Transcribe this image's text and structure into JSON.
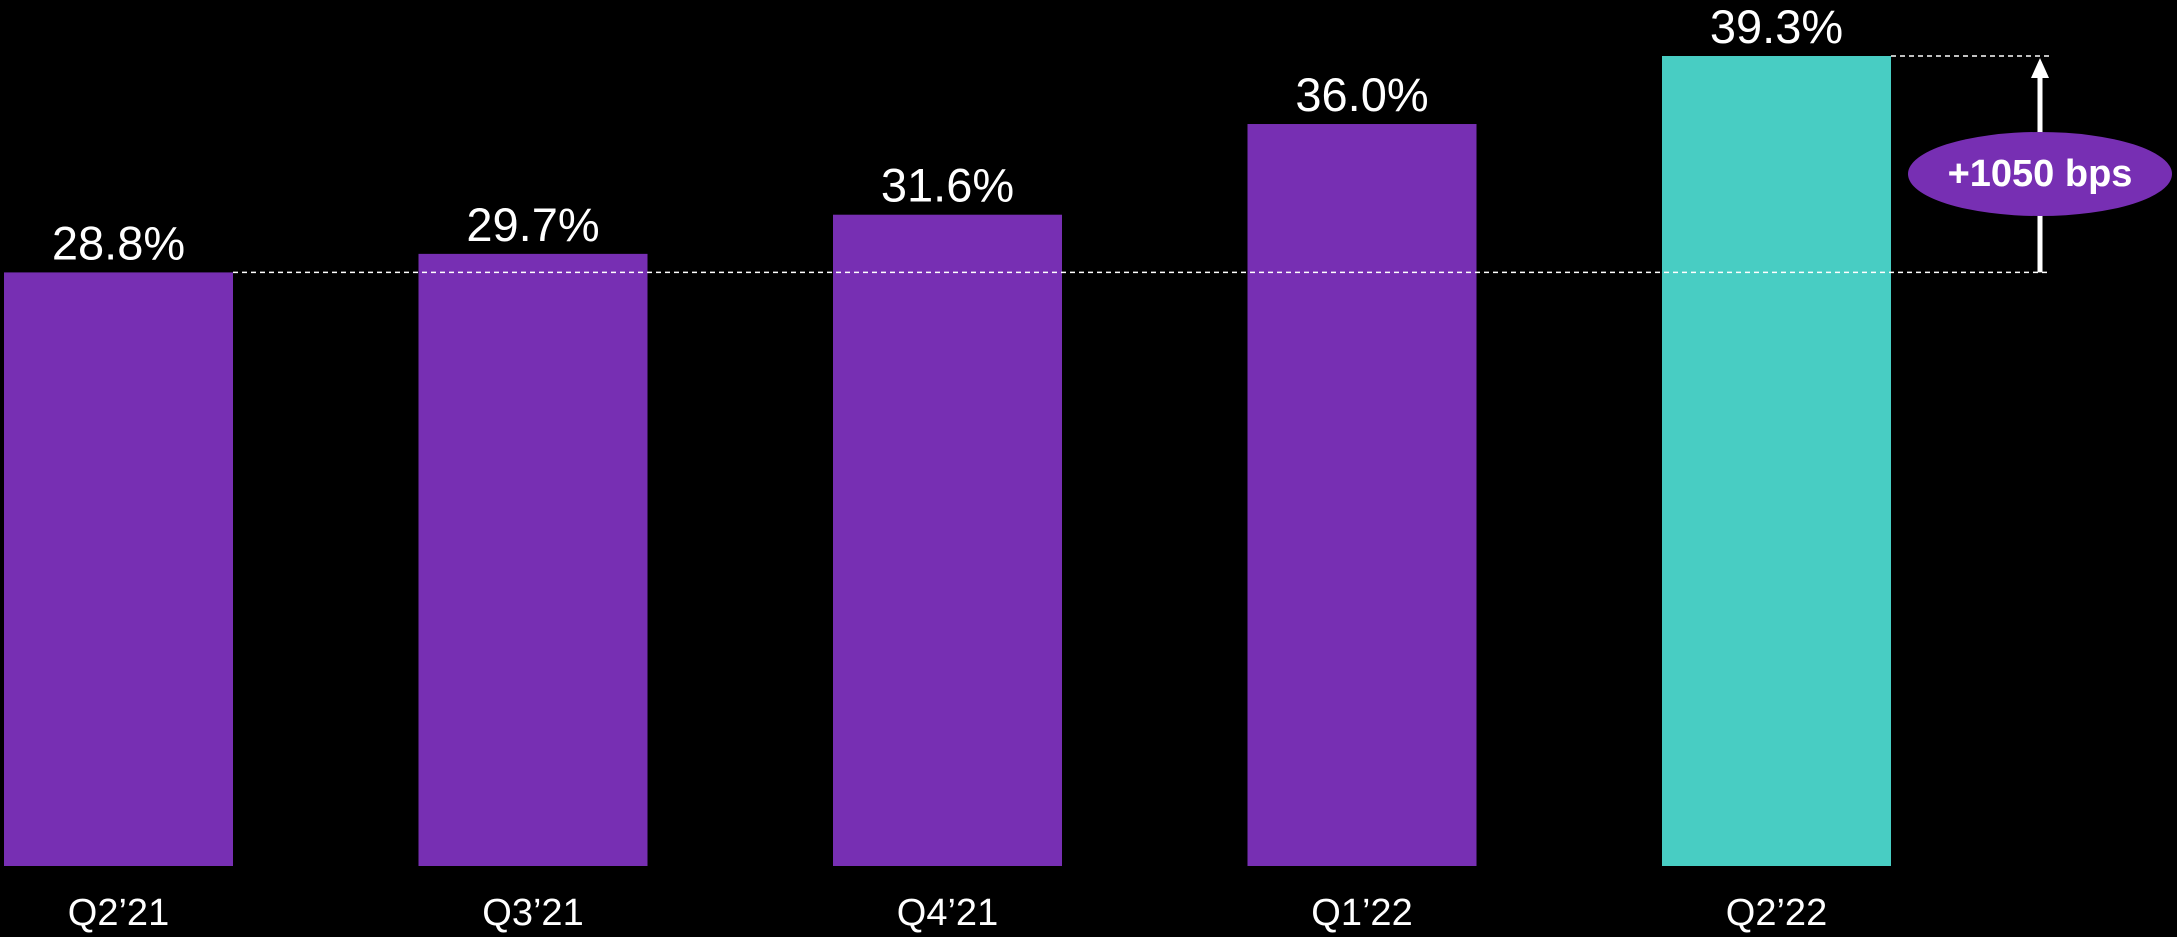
{
  "chart_data": {
    "type": "bar",
    "categories": [
      "Q2’21",
      "Q3’21",
      "Q4’21",
      "Q1’22",
      "Q2’22"
    ],
    "values": [
      28.8,
      29.7,
      31.6,
      36.0,
      39.3
    ],
    "value_labels": [
      "28.8%",
      "29.7%",
      "31.6%",
      "36.0%",
      "39.3%"
    ],
    "ylim": [
      0,
      39.3
    ],
    "grid": false,
    "colors": {
      "default": "#772fb3",
      "highlight": "#48cdc3",
      "background": "#000000",
      "callout": "#772fb3"
    },
    "highlight_index": 4,
    "annotation": {
      "text": "+1050 bps",
      "from_index": 0,
      "to_index": 4
    }
  }
}
